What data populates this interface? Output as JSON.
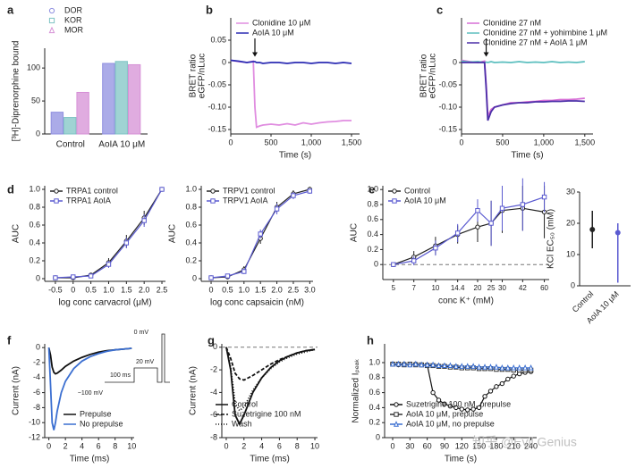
{
  "chart_data": [
    {
      "label": "a",
      "type": "bar",
      "ylabel": "[³H]-Diprenorphine bound",
      "categories": [
        "Control",
        "AoIA 10 μM"
      ],
      "ylim": [
        0,
        130
      ],
      "yticks": [
        0,
        50,
        100
      ],
      "legend": "above",
      "series": [
        {
          "name": "DOR",
          "color": "#8f8fe0",
          "marker": "circle",
          "values": [
            33,
            107
          ]
        },
        {
          "name": "KOR",
          "color": "#7fc4c4",
          "marker": "square",
          "values": [
            25,
            110
          ]
        },
        {
          "name": "MOR",
          "color": "#d690d6",
          "marker": "triangle",
          "values": [
            63,
            105
          ]
        }
      ]
    },
    {
      "label": "b",
      "type": "line",
      "xlabel": "Time (s)",
      "ylabel": [
        "BRET ratio",
        "eGFP/nLuc"
      ],
      "x": [
        0,
        100,
        200,
        280,
        300,
        320,
        360,
        400,
        500,
        600,
        700,
        800,
        900,
        1000,
        1100,
        1200,
        1300,
        1400,
        1500
      ],
      "xlim": [
        0,
        1600
      ],
      "xticks": [
        0,
        500,
        {
          "value": 1000,
          "label": "1,000"
        },
        {
          "value": 1500,
          "label": "1,500"
        }
      ],
      "ylim": [
        -0.16,
        0.1
      ],
      "yticks": [
        -0.15,
        {
          "value": -0.1,
          "label": "-0.10"
        },
        -0.05,
        0,
        0.05
      ],
      "legend": "upper left",
      "arrow_x": 300,
      "series": [
        {
          "name": "Clonidine 10 μM",
          "color": "#e08de0",
          "values": [
            0.005,
            0.002,
            0,
            0.003,
            -0.1,
            -0.145,
            -0.142,
            -0.14,
            -0.138,
            -0.14,
            -0.137,
            -0.14,
            -0.135,
            -0.138,
            -0.135,
            -0.133,
            -0.132,
            -0.13,
            -0.13
          ]
        },
        {
          "name": "AoIA 10 μM",
          "color": "#2b2bb3",
          "values": [
            0.005,
            0.003,
            0,
            0.002,
            0.002,
            0,
            0,
            -0.002,
            0,
            0,
            -0.002,
            0,
            0,
            -0.002,
            0,
            0,
            -0.002,
            0,
            -0.002
          ]
        }
      ]
    },
    {
      "label": "c",
      "type": "line",
      "xlabel": "Time (s)",
      "ylabel": [
        "BRET ratio",
        "eGFP/nLuc"
      ],
      "x": [
        0,
        100,
        200,
        280,
        300,
        320,
        360,
        400,
        500,
        600,
        700,
        800,
        900,
        1000,
        1100,
        1200,
        1300,
        1400,
        1500
      ],
      "xlim": [
        0,
        1600
      ],
      "xticks": [
        0,
        500,
        {
          "value": 1000,
          "label": "1,000"
        },
        {
          "value": 1500,
          "label": "1,500"
        }
      ],
      "ylim": [
        -0.16,
        0.1
      ],
      "yticks": [
        -0.15,
        {
          "value": -0.1,
          "label": "-0.10"
        },
        -0.05,
        0
      ],
      "legend": "upper left",
      "arrow_x": 300,
      "series": [
        {
          "name": "Clonidine 27 nM",
          "color": "#d76fd6",
          "values": [
            0.005,
            0.002,
            0,
            0.003,
            -0.05,
            -0.12,
            -0.105,
            -0.1,
            -0.095,
            -0.09,
            -0.09,
            -0.088,
            -0.087,
            -0.085,
            -0.085,
            -0.083,
            -0.083,
            -0.082,
            -0.08
          ]
        },
        {
          "name": "Clonidine 27 nM + yohimbine 1 μM",
          "color": "#5cbfbf",
          "values": [
            0.003,
            0.001,
            0.002,
            0,
            0.001,
            0,
            0.002,
            0,
            0.001,
            0,
            0.002,
            0,
            0.001,
            0,
            0.002,
            0,
            0.001,
            0,
            0.002
          ]
        },
        {
          "name": "Clonidine 27 nM + AoIA 1 μM",
          "color": "#4b2fa8",
          "values": [
            0,
            0,
            0,
            0,
            -0.06,
            -0.13,
            -0.11,
            -0.1,
            -0.095,
            -0.092,
            -0.09,
            -0.09,
            -0.088,
            -0.088,
            -0.087,
            -0.087,
            -0.086,
            -0.086,
            -0.087
          ]
        }
      ]
    },
    {
      "label": "d",
      "type": "line",
      "xlabel": "log conc carvacrol (μM)",
      "ylabel": "AUC",
      "x": [
        -0.5,
        0,
        0.5,
        1,
        1.5,
        2,
        2.5
      ],
      "xlim": [
        -0.8,
        2.6
      ],
      "xticks": [
        -0.5,
        0,
        0.5,
        {
          "value": 1,
          "label": "1.0"
        },
        1.5,
        {
          "value": 2,
          "label": "2.0"
        },
        2.5
      ],
      "ylim": [
        -0.03,
        1.04
      ],
      "yticks": [
        0,
        0.2,
        0.4,
        0.6,
        0.8,
        {
          "value": 1,
          "label": "1.0"
        }
      ],
      "legend": "upper left",
      "series": [
        {
          "name": "TRPA1 control",
          "color": "#222222",
          "marker": "circle",
          "values": [
            0.01,
            0.01,
            0.04,
            0.18,
            0.42,
            0.68,
            1
          ],
          "errors": [
            0.01,
            0.01,
            0.02,
            0.05,
            0.07,
            0.08,
            0
          ]
        },
        {
          "name": "TRPA1 AoIA",
          "color": "#5a5ad0",
          "marker": "square",
          "values": [
            0.01,
            0.02,
            0.03,
            0.16,
            0.4,
            0.65,
            1
          ],
          "errors": [
            0.01,
            0.01,
            0.02,
            0.04,
            0.06,
            0.07,
            0
          ]
        }
      ]
    },
    {
      "type": "line",
      "xlabel": "log conc capsaicin (nM)",
      "ylabel": "AUC",
      "x": [
        0,
        0.5,
        1,
        1.5,
        2,
        2.5,
        3
      ],
      "xlim": [
        -0.3,
        3.1
      ],
      "xticks": [
        0,
        0.5,
        {
          "value": 1,
          "label": "1.0"
        },
        1.5,
        {
          "value": 2,
          "label": "2.0"
        },
        2.5,
        {
          "value": 3,
          "label": "3.0"
        }
      ],
      "ylim": [
        -0.03,
        1.04
      ],
      "yticks": [
        0,
        0.2,
        0.4,
        0.6,
        0.8,
        {
          "value": 1,
          "label": "1.0"
        }
      ],
      "legend": "upper left",
      "series": [
        {
          "name": "TRPV1 control",
          "color": "#222222",
          "marker": "circle",
          "values": [
            0.01,
            0.02,
            0.1,
            0.45,
            0.8,
            0.95,
            1
          ],
          "errors": [
            0.01,
            0.01,
            0.04,
            0.06,
            0.06,
            0.04,
            0.03
          ]
        },
        {
          "name": "TRPV1 AoIA",
          "color": "#5a5ad0",
          "marker": "square",
          "values": [
            0.01,
            0.03,
            0.08,
            0.5,
            0.78,
            0.93,
            0.98
          ],
          "errors": [
            0.01,
            0.01,
            0.03,
            0.05,
            0.06,
            0.04,
            0.03
          ]
        }
      ]
    },
    {
      "label": "e",
      "type": "line",
      "xscale": "log",
      "xlabel": "conc K⁺ (mM)",
      "ylabel": "AUC",
      "x": [
        5,
        7,
        10,
        14.4,
        20,
        25,
        30,
        42,
        60
      ],
      "xlim": [
        4.2,
        65
      ],
      "xticks": [
        5,
        7,
        10,
        14.4,
        20,
        25,
        30,
        42,
        60
      ],
      "ylim": [
        -0.2,
        1.05
      ],
      "yticks": [
        0,
        0.2,
        0.4,
        0.6,
        0.8,
        {
          "value": 1,
          "label": "1.0"
        }
      ],
      "legend": "upper left",
      "zero_line": true,
      "series": [
        {
          "name": "Control",
          "color": "#222222",
          "marker": "circle",
          "values": [
            0,
            0.1,
            0.25,
            0.4,
            0.5,
            0.55,
            0.72,
            0.75,
            0.7
          ],
          "errors": [
            0.02,
            0.08,
            0.12,
            0.12,
            0.2,
            0.3,
            0.3,
            0.3,
            0.35
          ]
        },
        {
          "name": "AoIA 10 μM",
          "color": "#5a5ad0",
          "marker": "square",
          "values": [
            0,
            0.05,
            0.22,
            0.42,
            0.72,
            0.55,
            0.75,
            0.8,
            0.9
          ],
          "errors": [
            0.02,
            0.06,
            0.1,
            0.12,
            0.15,
            0.3,
            0.3,
            0.35,
            0.2
          ]
        }
      ]
    },
    {
      "type": "errorbar",
      "ylabel": "KCl EC₅₀ (mM)",
      "categories": [
        "Control",
        "AoIA 10 μM"
      ],
      "values": [
        18,
        17
      ],
      "lower": [
        12,
        1
      ],
      "upper": [
        24,
        20
      ],
      "colors": [
        "#222222",
        "#5a5ad0"
      ],
      "ylim": [
        0,
        30
      ],
      "yticks": [
        0,
        10,
        20,
        30
      ]
    },
    {
      "label": "f",
      "type": "line",
      "xlabel": "Time (ms)",
      "ylabel": "Current (nA)",
      "x": [
        0,
        0.2,
        0.4,
        0.6,
        0.8,
        1,
        1.5,
        2,
        3,
        4,
        5,
        6,
        7,
        8,
        9,
        10
      ],
      "xlim": [
        -0.5,
        10.3
      ],
      "xticks": [
        0,
        2,
        4,
        6,
        8,
        10
      ],
      "ylim": [
        -12,
        0.5
      ],
      "yticks": [
        -12,
        -10,
        -8,
        -6,
        -4,
        -2,
        0
      ],
      "legend": "lower right",
      "inset_labels": [
        "0 mV",
        "20 mV",
        "100 ms",
        "−100 mV"
      ],
      "series": [
        {
          "name": "Prepulse",
          "color": "#111111",
          "values": [
            0,
            -1,
            -2.6,
            -3.3,
            -3.5,
            -3.4,
            -3,
            -2.5,
            -1.8,
            -1.3,
            -0.9,
            -0.6,
            -0.4,
            -0.3,
            -0.2,
            -0.1
          ]
        },
        {
          "name": "No prepulse",
          "color": "#3b6fd1",
          "values": [
            0,
            -5,
            -10,
            -11,
            -10,
            -8.5,
            -6,
            -4.5,
            -2.8,
            -1.8,
            -1.2,
            -0.8,
            -0.5,
            -0.3,
            -0.2,
            -0.1
          ]
        }
      ]
    },
    {
      "label": "g",
      "type": "line",
      "xlabel": "Time (ms)",
      "ylabel": "Current (nA)",
      "x": [
        0,
        0.5,
        1,
        1.5,
        2,
        3,
        4,
        5,
        6,
        7,
        8,
        9,
        10
      ],
      "xlim": [
        -0.5,
        10.3
      ],
      "xticks": [
        0,
        2,
        4,
        6,
        8,
        10
      ],
      "ylim": [
        -8,
        0.3
      ],
      "yticks": [
        -8,
        -6,
        -4,
        -2,
        0
      ],
      "legend": "lower right",
      "zero_line": true,
      "series": [
        {
          "name": "Control",
          "color": "#111111",
          "dash": "solid",
          "values": [
            0,
            -2,
            -6,
            -6.8,
            -6,
            -4,
            -2.7,
            -1.8,
            -1.2,
            -0.8,
            -0.5,
            -0.3,
            -0.2
          ]
        },
        {
          "name": "Suzetrigine 100 nM",
          "color": "#111111",
          "dash": "dashed",
          "values": [
            0,
            -1,
            -2.3,
            -2.8,
            -2.9,
            -2.5,
            -2,
            -1.5,
            -1.1,
            -0.8,
            -0.5,
            -0.3,
            -0.2
          ]
        },
        {
          "name": "Wash",
          "color": "#111111",
          "dash": "dotted",
          "values": [
            0,
            -1.8,
            -5,
            -5.6,
            -5.3,
            -3.8,
            -2.7,
            -1.9,
            -1.3,
            -0.9,
            -0.6,
            -0.4,
            -0.2
          ]
        }
      ]
    },
    {
      "label": "h",
      "type": "line",
      "xlabel": "Time (s)",
      "ylabel": "Normalized Iₚₑₐₖ",
      "x": [
        0,
        10,
        20,
        30,
        40,
        50,
        60,
        70,
        80,
        90,
        100,
        110,
        120,
        130,
        140,
        150,
        160,
        170,
        180,
        190,
        200,
        210,
        220,
        230,
        240
      ],
      "xlim": [
        -14,
        250
      ],
      "xticks": [
        0,
        30,
        60,
        90,
        120,
        150,
        180,
        210,
        240
      ],
      "ylim": [
        0,
        1.25
      ],
      "yticks": [
        0,
        0.2,
        0.4,
        0.6,
        0.8,
        {
          "value": 1,
          "label": "1.0"
        }
      ],
      "legend": "lower right",
      "watermark": "知乎 @Evil Genius",
      "series": [
        {
          "name": "Suzetrigine 100 nM, prepulse",
          "color": "#111111",
          "marker": "circle",
          "values": [
            0.98,
            0.97,
            0.98,
            0.97,
            0.98,
            0.97,
            0.97,
            0.6,
            0.5,
            0.45,
            0.42,
            0.4,
            0.38,
            0.37,
            0.38,
            0.4,
            0.55,
            0.62,
            0.68,
            0.72,
            0.78,
            0.82,
            0.85,
            0.87,
            0.88
          ]
        },
        {
          "name": "AoIA 10 μM, prepulse",
          "color": "#333333",
          "marker": "square",
          "values": [
            0.98,
            0.98,
            0.97,
            0.98,
            0.97,
            0.97,
            0.96,
            0.96,
            0.95,
            0.95,
            0.94,
            0.94,
            0.93,
            0.93,
            0.93,
            0.92,
            0.92,
            0.92,
            0.91,
            0.91,
            0.91,
            0.9,
            0.9,
            0.9,
            0.9
          ]
        },
        {
          "name": "AoIA 10 μM, no prepulse",
          "color": "#3b6fd1",
          "marker": "triangle",
          "values": [
            0.98,
            0.98,
            0.98,
            0.97,
            0.98,
            0.97,
            0.97,
            0.97,
            0.96,
            0.96,
            0.96,
            0.95,
            0.95,
            0.95,
            0.95,
            0.94,
            0.94,
            0.94,
            0.94,
            0.93,
            0.93,
            0.93,
            0.93,
            0.93,
            0.93
          ]
        }
      ]
    }
  ]
}
